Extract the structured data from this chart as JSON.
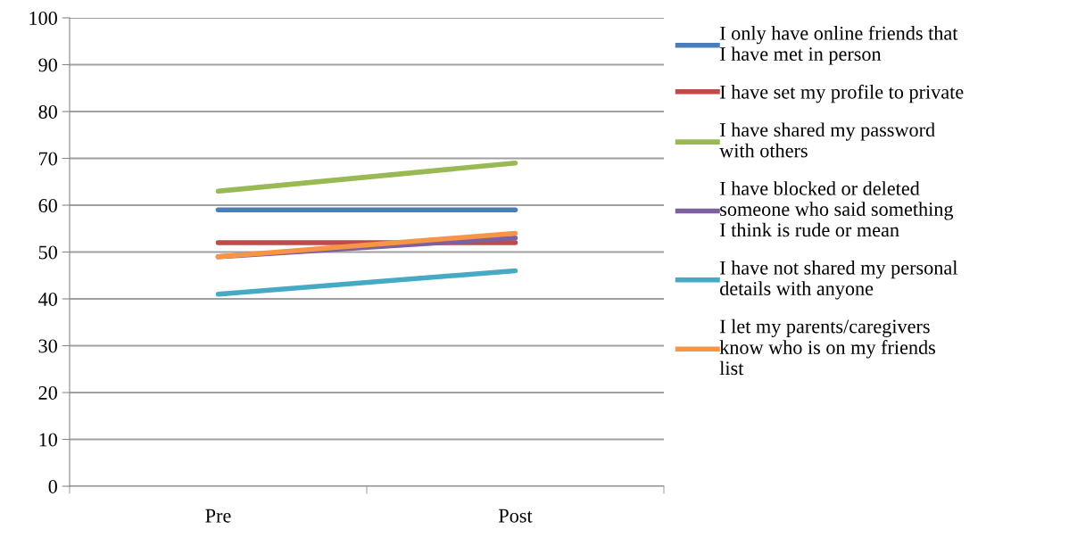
{
  "chart_data": {
    "type": "line",
    "categories": [
      "Pre",
      "Post"
    ],
    "series": [
      {
        "name": "I only have online friends that\nI have met in person",
        "color": "#4a7ebb",
        "values": [
          59,
          59
        ]
      },
      {
        "name": "I have set my profile to private",
        "color": "#be4b48",
        "values": [
          52,
          52
        ]
      },
      {
        "name": "I have shared my password\nwith others",
        "color": "#98b954",
        "values": [
          63,
          69
        ]
      },
      {
        "name": "I have blocked or deleted\nsomeone who said something\nI think is rude or mean",
        "color": "#7d60a0",
        "values": [
          49,
          53
        ]
      },
      {
        "name": "I have not shared my personal\ndetails with anyone",
        "color": "#46aac5",
        "values": [
          41,
          46
        ]
      },
      {
        "name": "I let my parents/caregivers\nknow who is on my friends\nlist",
        "color": "#f69546",
        "values": [
          49,
          54
        ]
      }
    ],
    "ylim": [
      0,
      100
    ],
    "yticks": [
      0,
      10,
      20,
      30,
      40,
      50,
      60,
      70,
      80,
      90,
      100
    ],
    "grid": "y",
    "legend": "right",
    "marker": "none",
    "line_style": "solid"
  }
}
